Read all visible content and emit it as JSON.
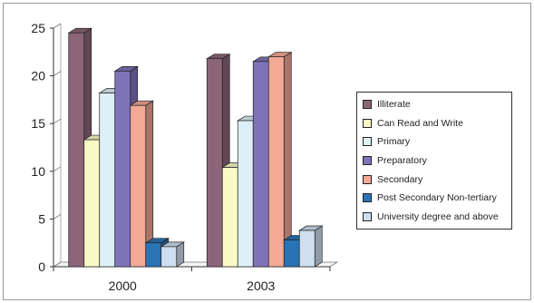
{
  "chart_data": {
    "type": "bar",
    "categories": [
      "2000",
      "2003"
    ],
    "series": [
      {
        "name": "Illiterate",
        "values": [
          24.5,
          21.8
        ],
        "color": "#8c6678"
      },
      {
        "name": "Can Read and Write",
        "values": [
          13.3,
          10.4
        ],
        "color": "#fafac6"
      },
      {
        "name": "Primary",
        "values": [
          18.2,
          15.3
        ],
        "color": "#ddf0f7"
      },
      {
        "name": "Preparatory",
        "values": [
          20.5,
          21.5
        ],
        "color": "#7f73b8"
      },
      {
        "name": "Secondary",
        "values": [
          16.9,
          22.0
        ],
        "color": "#f2a996"
      },
      {
        "name": "Post Secondary Non-tertiary",
        "values": [
          2.5,
          2.8
        ],
        "color": "#2a73b5"
      },
      {
        "name": "University degree and above",
        "values": [
          2.1,
          3.8
        ],
        "color": "#cfdff0"
      }
    ],
    "ylim": [
      0,
      25
    ],
    "yticks": [
      "0",
      "5",
      "10",
      "15",
      "20",
      "25"
    ],
    "xlabel": "",
    "ylabel": "",
    "legend": "right",
    "grid": false,
    "style": "3d"
  }
}
